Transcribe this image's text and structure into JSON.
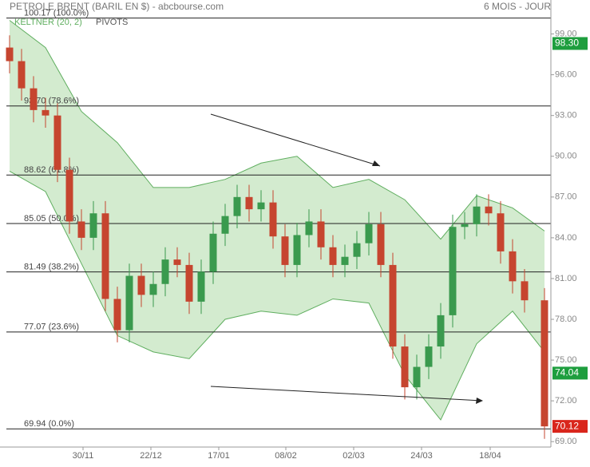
{
  "chart_data": {
    "type": "candlestick",
    "title": "PETROLE BRENT (BARIL EN $) - abcbourse.com",
    "period": "6 MOIS - JOUR",
    "indicator": "KELTNER (20, 2)",
    "overlay": "PIVOTS",
    "xlim": [
      -2.4,
      135.6
    ],
    "ylim": [
      68.6,
      101.5
    ],
    "xticks": [
      {
        "value": 18.4,
        "label": "30/11"
      },
      {
        "value": 35.4,
        "label": "22/12"
      },
      {
        "value": 52.4,
        "label": "17/01"
      },
      {
        "value": 69.2,
        "label": "08/02"
      },
      {
        "value": 86.2,
        "label": "02/03"
      },
      {
        "value": 103.2,
        "label": "24/03"
      },
      {
        "value": 120.4,
        "label": "18/04"
      }
    ],
    "yticks": [
      {
        "value": 99,
        "label": "99.00"
      },
      {
        "value": 96,
        "label": "96.00"
      },
      {
        "value": 93,
        "label": "93.00"
      },
      {
        "value": 90,
        "label": "90.00"
      },
      {
        "value": 87,
        "label": "87.00"
      },
      {
        "value": 84,
        "label": "84.00"
      },
      {
        "value": 81,
        "label": "81.00"
      },
      {
        "value": 78,
        "label": "78.00"
      },
      {
        "value": 75,
        "label": "75.00"
      },
      {
        "value": 72,
        "label": "72.00"
      },
      {
        "value": 69,
        "label": "69.00"
      }
    ],
    "fib_levels": [
      {
        "value": 100.17,
        "label": "100.17  (100.0%)"
      },
      {
        "value": 93.7,
        "label": "93.70  (78.6%)"
      },
      {
        "value": 88.62,
        "label": "88.62  (61.8%)"
      },
      {
        "value": 85.05,
        "label": "85.05  (50.0%)"
      },
      {
        "value": 81.49,
        "label": "81.49  (38.2%)"
      },
      {
        "value": 77.07,
        "label": "77.07  (23.6%)"
      },
      {
        "value": 69.94,
        "label": "69.94  (0.0%)"
      }
    ],
    "price_tags": [
      {
        "value": 98.3,
        "label": "98.30",
        "color": "#1e9e3e"
      },
      {
        "value": 74.04,
        "label": "74.04",
        "color": "#1e9e3e"
      },
      {
        "value": 70.12,
        "label": "70.12",
        "color": "#d9261c"
      }
    ],
    "up_color": "#3a9a4e",
    "down_color": "#c6452f",
    "band_color": "#d3ebcf",
    "band_line_color": "#5fae5f",
    "x": [
      0,
      3,
      6,
      9,
      12,
      15,
      18,
      21,
      24,
      27,
      30,
      33,
      36,
      39,
      42,
      45,
      48,
      51,
      54,
      57,
      60,
      63,
      66,
      69,
      72,
      75,
      78,
      81,
      84,
      87,
      90,
      93,
      96,
      99,
      102,
      105,
      108,
      111,
      114,
      117,
      120,
      123,
      126,
      129,
      134
    ],
    "open": [
      98.0,
      97.0,
      95.0,
      93.4,
      93.0,
      89.0,
      85.2,
      84.0,
      85.8,
      79.5,
      77.2,
      81.2,
      79.8,
      80.6,
      82.4,
      82.0,
      79.3,
      81.5,
      84.3,
      85.6,
      87.0,
      86.1,
      86.6,
      84.1,
      82.0,
      84.2,
      85.2,
      83.3,
      82.0,
      82.6,
      83.6,
      85.0,
      82.0,
      76.0,
      73.0,
      74.5,
      76.0,
      78.3,
      84.8,
      85.0,
      86.3,
      85.8,
      83.0,
      80.8,
      79.4
    ],
    "high": [
      98.9,
      97.9,
      95.9,
      94.3,
      93.9,
      89.9,
      86.1,
      86.7,
      86.7,
      80.4,
      82.1,
      82.1,
      81.5,
      83.3,
      83.3,
      82.9,
      82.4,
      85.2,
      86.5,
      87.9,
      87.9,
      87.5,
      87.5,
      85.0,
      85.1,
      86.1,
      86.1,
      84.2,
      83.5,
      84.5,
      85.9,
      85.9,
      82.9,
      76.9,
      75.4,
      76.9,
      79.2,
      85.7,
      85.9,
      87.2,
      87.2,
      86.7,
      83.9,
      81.7,
      80.3
    ],
    "low": [
      96.1,
      94.1,
      92.5,
      92.1,
      88.1,
      84.3,
      83.1,
      83.1,
      78.6,
      76.3,
      76.3,
      78.9,
      78.9,
      79.7,
      81.1,
      78.4,
      78.4,
      80.6,
      83.4,
      84.7,
      85.2,
      85.2,
      83.2,
      81.1,
      81.1,
      83.3,
      82.4,
      81.1,
      81.1,
      81.7,
      82.7,
      81.1,
      75.1,
      72.1,
      72.1,
      73.6,
      75.1,
      77.4,
      83.9,
      84.1,
      84.9,
      82.1,
      79.9,
      78.5,
      69.2
    ],
    "close": [
      97.0,
      95.0,
      93.4,
      93.0,
      89.0,
      85.2,
      84.0,
      85.8,
      79.5,
      77.2,
      81.2,
      79.8,
      80.6,
      82.4,
      82.0,
      79.3,
      81.5,
      84.3,
      85.6,
      87.0,
      86.1,
      86.6,
      84.1,
      82.0,
      84.2,
      85.2,
      83.3,
      82.0,
      82.6,
      83.6,
      85.0,
      82.0,
      76.0,
      73.0,
      74.5,
      76.0,
      78.3,
      84.8,
      85.0,
      86.3,
      85.8,
      83.0,
      80.8,
      79.4,
      70.12
    ],
    "band_x": [
      0,
      9,
      18,
      27,
      36,
      45,
      54,
      63,
      72,
      81,
      90,
      99,
      108,
      117,
      126,
      134
    ],
    "band_upper": [
      100.0,
      98.0,
      93.3,
      91.0,
      87.7,
      87.7,
      88.3,
      89.5,
      90.0,
      87.7,
      88.3,
      86.8,
      83.9,
      87.1,
      86.2,
      84.5
    ],
    "band_lower": [
      88.9,
      87.4,
      82.1,
      76.8,
      75.6,
      75.1,
      78.0,
      78.6,
      78.3,
      79.5,
      79.2,
      73.9,
      70.6,
      76.2,
      78.6,
      75.6
    ]
  }
}
